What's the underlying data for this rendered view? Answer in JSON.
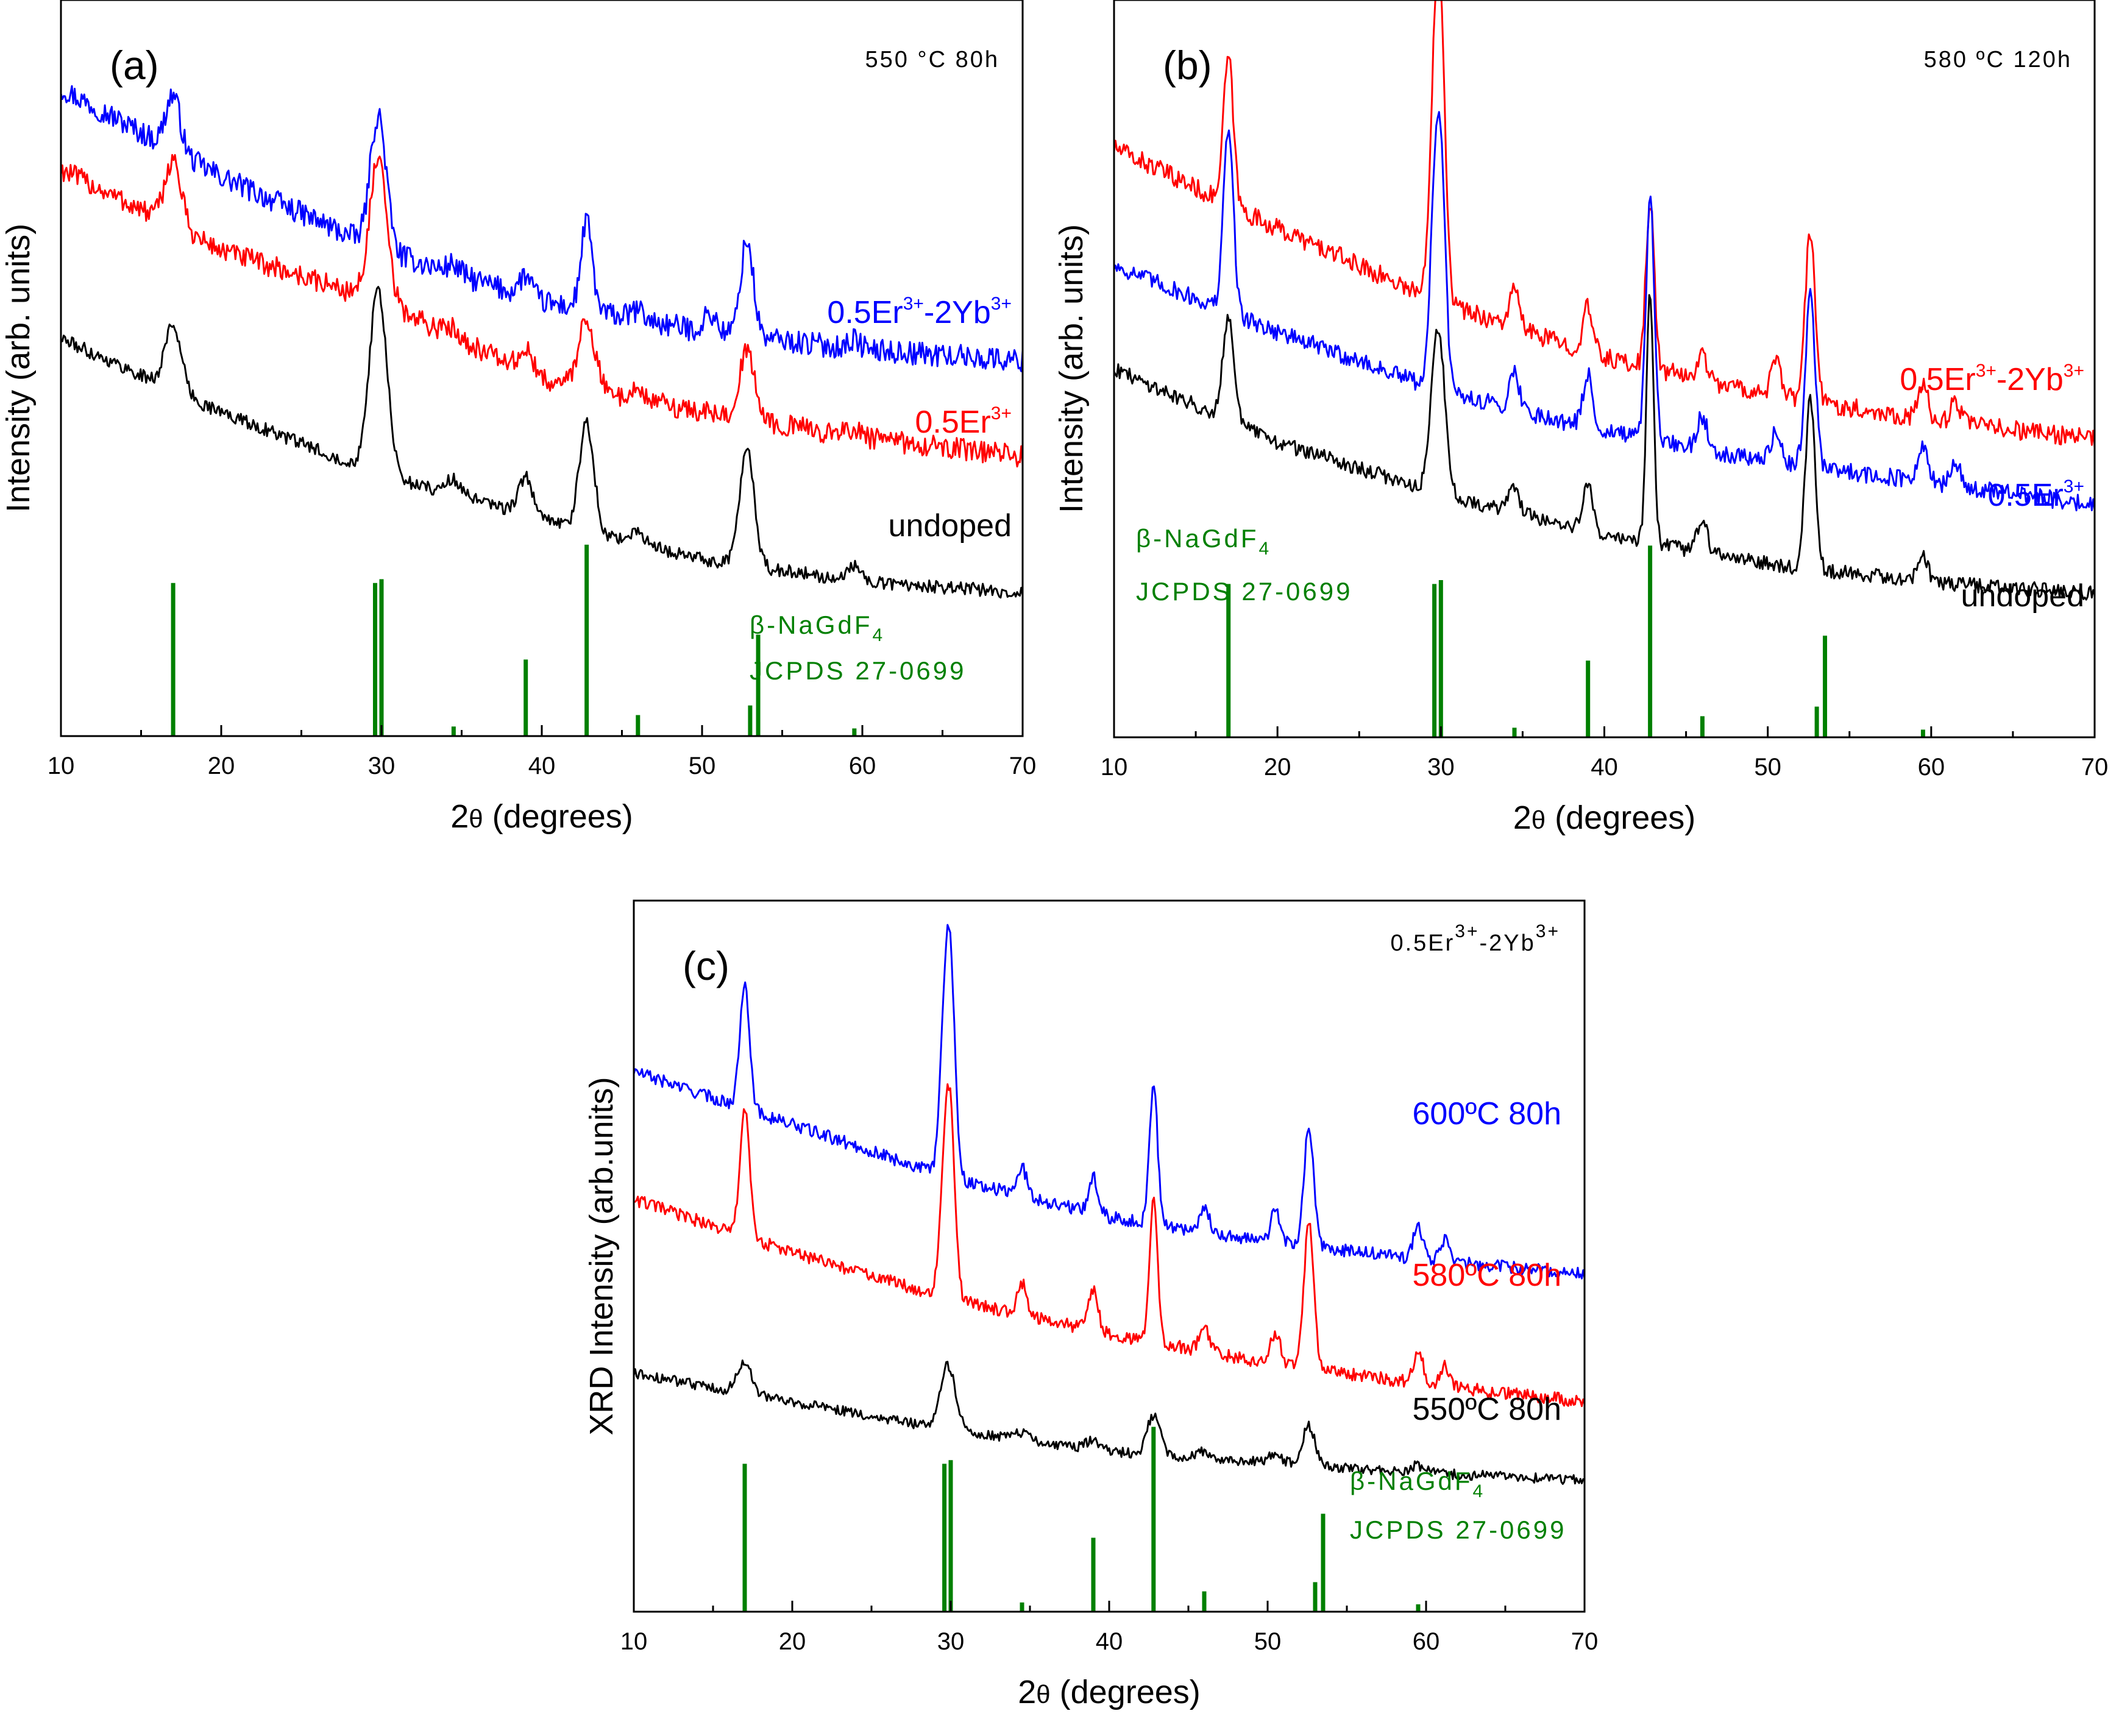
{
  "colors": {
    "undoped": "#000000",
    "er": "#ff0000",
    "eryb": "#0000ff",
    "ref": "#008000",
    "t550": "#000000",
    "t580": "#ff0000",
    "t600": "#0000ff"
  },
  "reference": {
    "label_prefix": "β-NaGdF",
    "label_sub": "4",
    "card": "JCPDS 27-0699",
    "peaks": [
      {
        "two_theta": 17.0,
        "intensity": 0.8
      },
      {
        "two_theta": 29.6,
        "intensity": 0.8
      },
      {
        "two_theta": 30.0,
        "intensity": 0.82
      },
      {
        "two_theta": 34.5,
        "intensity": 0.05
      },
      {
        "two_theta": 39.0,
        "intensity": 0.4
      },
      {
        "two_theta": 42.8,
        "intensity": 1.0
      },
      {
        "two_theta": 46.0,
        "intensity": 0.11
      },
      {
        "two_theta": 53.0,
        "intensity": 0.16
      },
      {
        "two_theta": 53.5,
        "intensity": 0.53
      },
      {
        "two_theta": 59.5,
        "intensity": 0.04
      }
    ]
  },
  "chart_data": [
    {
      "type": "line",
      "panel": "(a)",
      "condition": "550 °C 80h",
      "xlabel_prefix": "2",
      "xlabel_theta": "θ",
      "xlabel_suffix": " (degrees)",
      "ylabel": "Intensity (arb. units)",
      "xlim": [
        10,
        70
      ],
      "ylim": [
        0,
        10
      ],
      "xticks": [
        "10",
        "20",
        "30",
        "40",
        "50",
        "60",
        "70"
      ],
      "series": [
        {
          "key": "eryb",
          "name": "0.5Er3+-2Yb3+",
          "baseline": [
            8.8,
            7.6,
            6.6,
            5.9,
            5.5,
            5.25,
            5.1
          ],
          "noise": 0.16,
          "peaks": [
            [
              17.0,
              0.75,
              0.45
            ],
            [
              29.6,
              1.0,
              0.45
            ],
            [
              30.0,
              1.0,
              0.45
            ],
            [
              34.5,
              0.12,
              0.4
            ],
            [
              39.0,
              0.28,
              0.4
            ],
            [
              42.8,
              1.2,
              0.35
            ],
            [
              46.0,
              0.12,
              0.4
            ],
            [
              50.5,
              0.25,
              0.4
            ],
            [
              52.8,
              1.3,
              0.4
            ],
            [
              59.5,
              0.12,
              0.4
            ]
          ]
        },
        {
          "key": "er",
          "name": "0.5Er3+",
          "baseline": [
            7.7,
            6.6,
            5.9,
            4.85,
            4.4,
            4.05,
            3.8
          ],
          "noise": 0.15,
          "peaks": [
            [
              17.0,
              0.9,
              0.5
            ],
            [
              29.6,
              1.05,
              0.5
            ],
            [
              30.0,
              1.0,
              0.5
            ],
            [
              34.5,
              0.12,
              0.4
            ],
            [
              39.0,
              0.3,
              0.4
            ],
            [
              42.8,
              0.95,
              0.5
            ],
            [
              46.0,
              0.12,
              0.4
            ],
            [
              52.8,
              0.9,
              0.5
            ],
            [
              59.5,
              0.12,
              0.4
            ]
          ]
        },
        {
          "key": "undoped",
          "name": "undoped",
          "baseline": [
            5.4,
            4.4,
            3.55,
            2.95,
            2.4,
            2.1,
            1.95
          ],
          "noise": 0.09,
          "peaks": [
            [
              17.0,
              0.9,
              0.5
            ],
            [
              29.6,
              1.4,
              0.5
            ],
            [
              30.0,
              1.3,
              0.5
            ],
            [
              34.5,
              0.2,
              0.5
            ],
            [
              39.0,
              0.5,
              0.45
            ],
            [
              42.8,
              1.45,
              0.45
            ],
            [
              46.0,
              0.15,
              0.4
            ],
            [
              52.8,
              1.6,
              0.45
            ],
            [
              59.5,
              0.2,
              0.4
            ]
          ]
        }
      ],
      "labels": [
        {
          "key": "eryb",
          "parts": [
            "0.5Er",
            "3+",
            "-2Yb",
            "3+"
          ]
        },
        {
          "key": "er",
          "parts": [
            "0.5Er",
            "3+"
          ]
        },
        {
          "key": "undoped",
          "parts": [
            "undoped"
          ]
        }
      ]
    },
    {
      "type": "line",
      "panel": "(b)",
      "condition": "580 ºC 120h",
      "xlabel_prefix": "2",
      "xlabel_theta": "θ",
      "xlabel_suffix": " (degrees)",
      "ylabel": "Intensity (arb. units)",
      "xlim": [
        10,
        70
      ],
      "ylim": [
        0,
        10
      ],
      "xticks": [
        "10",
        "20",
        "30",
        "40",
        "50",
        "60",
        "70"
      ],
      "series": [
        {
          "key": "er",
          "name": "0.5Er3+-2Yb3+",
          "baseline": [
            8.0,
            6.9,
            5.9,
            5.15,
            4.65,
            4.3,
            4.05
          ],
          "noise": 0.13,
          "peaks": [
            [
              17.0,
              2.0,
              0.3
            ],
            [
              29.6,
              2.5,
              0.3
            ],
            [
              30.0,
              3.3,
              0.3
            ],
            [
              34.5,
              0.5,
              0.3
            ],
            [
              39.0,
              0.6,
              0.3
            ],
            [
              42.8,
              2.3,
              0.25
            ],
            [
              46.0,
              0.35,
              0.3
            ],
            [
              50.5,
              0.45,
              0.3
            ],
            [
              52.6,
              2.3,
              0.3
            ],
            [
              59.5,
              0.45,
              0.3
            ],
            [
              61.5,
              0.3,
              0.3
            ]
          ]
        },
        {
          "key": "eryb",
          "name": "0.5Er3+",
          "baseline": [
            6.4,
            5.5,
            4.7,
            4.15,
            3.75,
            3.45,
            3.15
          ],
          "noise": 0.12,
          "peaks": [
            [
              17.0,
              2.5,
              0.3
            ],
            [
              29.6,
              2.0,
              0.3
            ],
            [
              30.0,
              2.7,
              0.3
            ],
            [
              34.5,
              0.5,
              0.3
            ],
            [
              39.0,
              0.7,
              0.3
            ],
            [
              42.8,
              3.3,
              0.25
            ],
            [
              46.0,
              0.45,
              0.3
            ],
            [
              50.5,
              0.4,
              0.3
            ],
            [
              52.6,
              2.3,
              0.3
            ],
            [
              59.5,
              0.45,
              0.3
            ],
            [
              61.5,
              0.3,
              0.3
            ]
          ]
        },
        {
          "key": "undoped",
          "name": "undoped",
          "baseline": [
            5.0,
            4.0,
            3.3,
            2.75,
            2.35,
            2.1,
            1.95
          ],
          "noise": 0.1,
          "peaks": [
            [
              17.0,
              1.4,
              0.35
            ],
            [
              29.6,
              1.2,
              0.35
            ],
            [
              30.0,
              1.4,
              0.35
            ],
            [
              34.5,
              0.35,
              0.3
            ],
            [
              39.0,
              0.6,
              0.3
            ],
            [
              42.8,
              3.4,
              0.22
            ],
            [
              46.0,
              0.45,
              0.3
            ],
            [
              52.6,
              2.3,
              0.3
            ],
            [
              59.5,
              0.35,
              0.3
            ]
          ]
        }
      ],
      "labels": [
        {
          "key": "er",
          "parts": [
            "0.5Er",
            "3+",
            "-2Yb",
            "3+"
          ]
        },
        {
          "key": "eryb",
          "parts": [
            "0.5Er",
            "3+"
          ]
        },
        {
          "key": "undoped",
          "parts": [
            "undoped"
          ]
        }
      ]
    },
    {
      "type": "line",
      "panel": "(c)",
      "condition_parts": [
        "0.5Er",
        "3+",
        "-2Yb",
        "3+"
      ],
      "xlabel_prefix": "2",
      "xlabel_theta": "θ",
      "xlabel_suffix": " (degrees)",
      "ylabel": "XRD Intensity (arb.units)",
      "xlim": [
        10,
        70
      ],
      "ylim": [
        0,
        10
      ],
      "xticks": [
        "10",
        "20",
        "30",
        "40",
        "50",
        "60",
        "70"
      ],
      "series": [
        {
          "key": "eryb",
          "name": "600ºC 80h",
          "baseline": [
            7.6,
            6.85,
            6.1,
            5.55,
            5.2,
            4.95,
            4.75
          ],
          "noise": 0.09,
          "peaks": [
            [
              17.0,
              1.8,
              0.3
            ],
            [
              29.6,
              1.8,
              0.3
            ],
            [
              30.0,
              2.6,
              0.3
            ],
            [
              34.5,
              0.4,
              0.3
            ],
            [
              39.0,
              0.5,
              0.3
            ],
            [
              42.8,
              2.0,
              0.25
            ],
            [
              46.0,
              0.35,
              0.3
            ],
            [
              50.5,
              0.45,
              0.3
            ],
            [
              52.6,
              1.7,
              0.3
            ],
            [
              59.5,
              0.45,
              0.3
            ],
            [
              61.2,
              0.3,
              0.3
            ]
          ]
        },
        {
          "key": "er",
          "name": "580ºC 80h",
          "baseline": [
            5.8,
            5.05,
            4.4,
            3.9,
            3.5,
            3.2,
            2.95
          ],
          "noise": 0.09,
          "peaks": [
            [
              17.0,
              1.8,
              0.3
            ],
            [
              29.6,
              1.5,
              0.3
            ],
            [
              30.0,
              2.2,
              0.3
            ],
            [
              34.5,
              0.45,
              0.3
            ],
            [
              39.0,
              0.6,
              0.3
            ],
            [
              42.8,
              2.0,
              0.25
            ],
            [
              46.0,
              0.35,
              0.3
            ],
            [
              50.5,
              0.45,
              0.3
            ],
            [
              52.6,
              2.1,
              0.3
            ],
            [
              59.5,
              0.45,
              0.3
            ],
            [
              61.2,
              0.3,
              0.3
            ]
          ]
        },
        {
          "key": "undoped",
          "name": "550ºC 80h",
          "baseline": [
            3.35,
            2.95,
            2.55,
            2.25,
            2.1,
            1.95,
            1.85
          ],
          "noise": 0.07,
          "peaks": [
            [
              17.0,
              0.45,
              0.45
            ],
            [
              29.6,
              0.45,
              0.45
            ],
            [
              30.0,
              0.55,
              0.45
            ],
            [
              34.5,
              0.1,
              0.4
            ],
            [
              39.0,
              0.15,
              0.4
            ],
            [
              42.8,
              0.55,
              0.4
            ],
            [
              46.0,
              0.1,
              0.4
            ],
            [
              50.5,
              0.12,
              0.4
            ],
            [
              52.6,
              0.55,
              0.4
            ],
            [
              59.5,
              0.1,
              0.4
            ]
          ]
        }
      ],
      "labels": [
        {
          "key": "eryb",
          "parts": [
            "600ºC 80h"
          ]
        },
        {
          "key": "er",
          "parts": [
            "580ºC 80h"
          ]
        },
        {
          "key": "undoped",
          "parts": [
            "550ºC 80h"
          ]
        }
      ]
    }
  ]
}
